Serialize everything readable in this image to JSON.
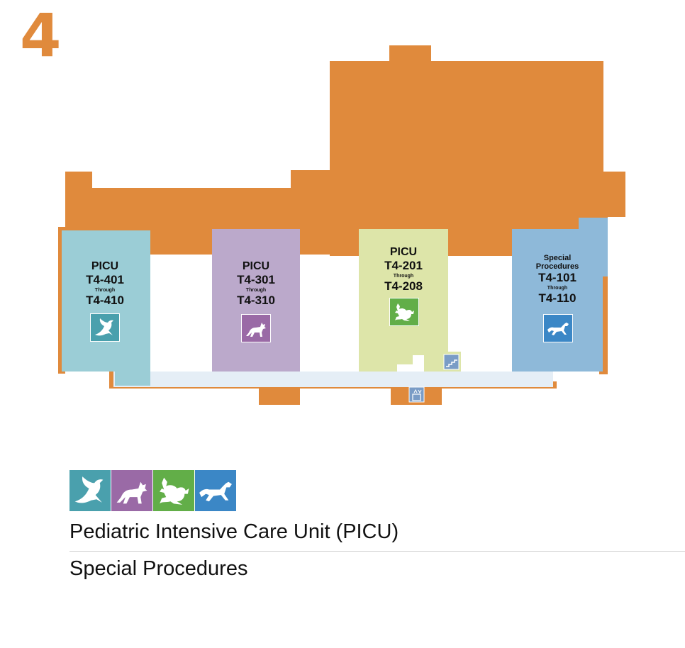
{
  "floor": {
    "number": "4"
  },
  "colors": {
    "building": "#e08a3c",
    "corridor": "#e5eef6",
    "picu_400": "#9bcdd6",
    "picu_300": "#bba9cb",
    "picu_200": "#dde5a9",
    "special_100": "#8eb9d9",
    "icon_bird": "#4aa0ad",
    "icon_coyote": "#9a6aa6",
    "icon_frog": "#62ae48",
    "icon_horse": "#3b87c6"
  },
  "zones": [
    {
      "unit": "PICU",
      "room_start": "T4-401",
      "through": "Through",
      "room_end": "T4-410",
      "icon": "bird-icon"
    },
    {
      "unit": "PICU",
      "room_start": "T4-301",
      "through": "Through",
      "room_end": "T4-310",
      "icon": "coyote-icon"
    },
    {
      "unit": "PICU",
      "room_start": "T4-201",
      "through": "Through",
      "room_end": "T4-208",
      "icon": "frog-icon"
    },
    {
      "unit": "Special Procedures",
      "room_start": "T4-101",
      "through": "Through",
      "room_end": "T4-110",
      "icon": "horse-icon"
    }
  ],
  "map_icons": [
    "stairs-icon",
    "elevator-icon"
  ],
  "legend": {
    "icons": [
      "bird-icon",
      "coyote-icon",
      "frog-icon",
      "horse-icon"
    ],
    "items": [
      "Pediatric Intensive Care Unit (PICU)",
      "Special Procedures"
    ]
  }
}
